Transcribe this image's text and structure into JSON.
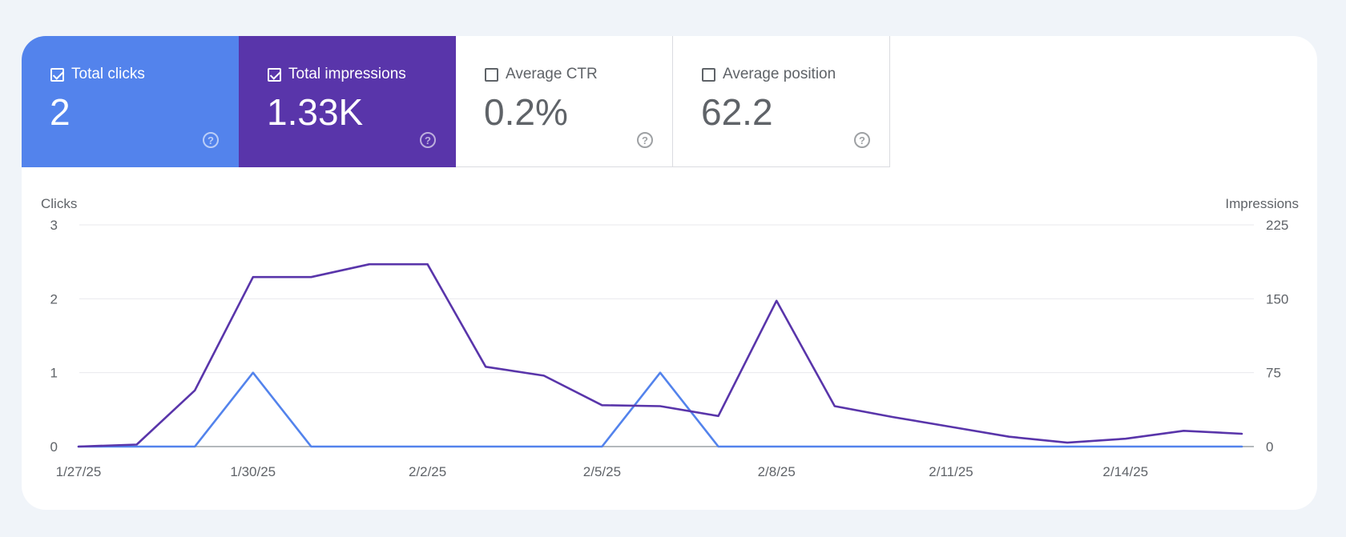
{
  "metrics": [
    {
      "label": "Total clicks",
      "value": "2",
      "checked": true
    },
    {
      "label": "Total impressions",
      "value": "1.33K",
      "checked": true
    },
    {
      "label": "Average CTR",
      "value": "0.2%",
      "checked": false
    },
    {
      "label": "Average position",
      "value": "62.2",
      "checked": false
    }
  ],
  "help_icon_glyph": "?",
  "colors": {
    "clicks": "#5383ec",
    "impressions": "#5935aa",
    "grid": "#e8eaed",
    "axis_text": "#5f6368"
  },
  "chart_data": {
    "type": "line",
    "y_left_label": "Clicks",
    "y_right_label": "Impressions",
    "y_left_ticks": [
      "3",
      "2",
      "1",
      "0"
    ],
    "y_right_ticks": [
      "225",
      "150",
      "75",
      "0"
    ],
    "y_left_range": [
      0,
      3
    ],
    "y_right_range": [
      0,
      225
    ],
    "x_labels": [
      "1/27/25",
      "1/30/25",
      "2/2/25",
      "2/5/25",
      "2/8/25",
      "2/11/25",
      "2/14/25"
    ],
    "x": [
      "1/27/25",
      "1/28/25",
      "1/29/25",
      "1/30/25",
      "1/31/25",
      "2/1/25",
      "2/2/25",
      "2/3/25",
      "2/4/25",
      "2/5/25",
      "2/6/25",
      "2/7/25",
      "2/8/25",
      "2/9/25",
      "2/10/25",
      "2/11/25",
      "2/12/25",
      "2/13/25",
      "2/14/25",
      "2/15/25",
      "2/16/25"
    ],
    "series": [
      {
        "name": "Clicks",
        "axis": "left",
        "color": "#5383ec",
        "values": [
          0,
          0,
          0,
          1,
          0,
          0,
          0,
          0,
          0,
          0,
          1,
          0,
          0,
          0,
          0,
          0,
          0,
          0,
          0,
          0,
          0
        ]
      },
      {
        "name": "Impressions",
        "axis": "right",
        "color": "#5935aa",
        "values": [
          0,
          2,
          57,
          172,
          172,
          185,
          185,
          81,
          72,
          42,
          41,
          31,
          148,
          41,
          30,
          20,
          10,
          4,
          8,
          16,
          13
        ]
      }
    ],
    "grid": true
  }
}
